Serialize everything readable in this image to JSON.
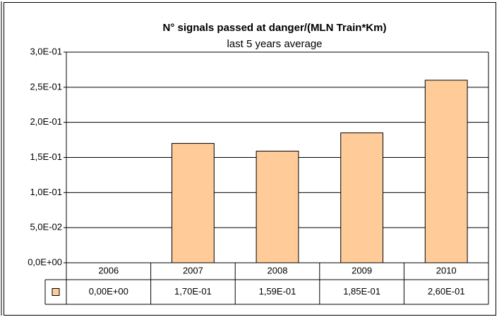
{
  "chart_data": {
    "type": "bar",
    "title": "N° signals passed at danger/(MLN Train*Km)",
    "subtitle": "last 5 years average",
    "categories": [
      "2006",
      "2007",
      "2008",
      "2009",
      "2010"
    ],
    "values": [
      0,
      0.17,
      0.159,
      0.185,
      0.26
    ],
    "value_labels": [
      "0,00E+00",
      "1,70E-01",
      "1,59E-01",
      "1,85E-01",
      "2,60E-01"
    ],
    "color": "#ffcc99",
    "ylim": [
      0,
      0.3
    ],
    "yticks": [
      {
        "value": 0,
        "label": "0,0E+00"
      },
      {
        "value": 0.05,
        "label": "5,0E-02"
      },
      {
        "value": 0.1,
        "label": "1,0E-01"
      },
      {
        "value": 0.15,
        "label": "1,5E-01"
      },
      {
        "value": 0.2,
        "label": "2,0E-01"
      },
      {
        "value": 0.25,
        "label": "2,5E-01"
      },
      {
        "value": 0.3,
        "label": "3,0E-01"
      }
    ],
    "grid": true
  }
}
